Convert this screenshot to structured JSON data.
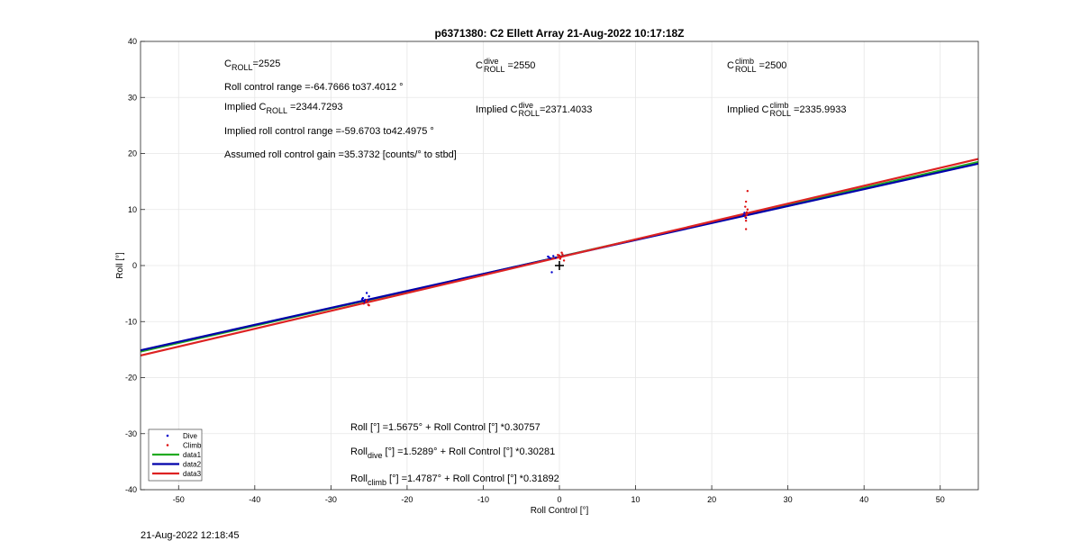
{
  "chart_data": {
    "type": "scatter",
    "title": "p6371380: C2 Ellett Array 21-Aug-2022 10:17:18Z",
    "xlabel": "Roll Control [°]",
    "ylabel": "Roll [°]",
    "xlim": [
      -55,
      55
    ],
    "ylim": [
      -40,
      40
    ],
    "xticks": [
      -50,
      -40,
      -30,
      -20,
      -10,
      0,
      10,
      20,
      30,
      40,
      50
    ],
    "yticks": [
      -40,
      -30,
      -20,
      -10,
      0,
      10,
      20,
      30,
      40
    ],
    "xtick_labels": [
      "-50",
      "-40",
      "-30",
      "-20",
      "-10",
      "0",
      "10",
      "20",
      "30",
      "40",
      "50"
    ],
    "ytick_labels": [
      "-40",
      "-30",
      "-20",
      "-10",
      "0",
      "10",
      "20",
      "30",
      "40"
    ],
    "grid": true,
    "legend_position": "bottom-left",
    "series": [
      {
        "name": "Dive",
        "kind": "points",
        "color": "#0000cc",
        "points": [
          [
            -25.5,
            -6.1
          ],
          [
            -25.8,
            -5.8
          ],
          [
            -25.2,
            -6.3
          ],
          [
            -25.0,
            -5.5
          ],
          [
            -25.6,
            -6.6
          ],
          [
            -25.3,
            -4.9
          ],
          [
            -25.9,
            -6.0
          ],
          [
            -1.5,
            1.6
          ],
          [
            -1.2,
            1.3
          ],
          [
            -0.8,
            1.7
          ],
          [
            -1.0,
            -1.2
          ],
          [
            -1.4,
            1.5
          ],
          [
            -0.5,
            1.4
          ],
          [
            24.2,
            9.0
          ],
          [
            24.5,
            8.5
          ],
          [
            24.3,
            9.4
          ]
        ]
      },
      {
        "name": "Climb",
        "kind": "points",
        "color": "#dd1111",
        "points": [
          [
            -25.4,
            -6.5
          ],
          [
            -25.1,
            -7.0
          ],
          [
            -25.7,
            -6.8
          ],
          [
            -25.3,
            -6.2
          ],
          [
            -25.0,
            -7.1
          ],
          [
            0.0,
            1.8
          ],
          [
            0.2,
            1.5
          ],
          [
            0.3,
            2.3
          ],
          [
            0.6,
            0.9
          ],
          [
            0.4,
            2.0
          ],
          [
            0.1,
            1.2
          ],
          [
            -0.2,
            1.9
          ],
          [
            24.5,
            8.0
          ],
          [
            24.6,
            9.5
          ],
          [
            24.4,
            10.5
          ],
          [
            24.5,
            11.4
          ],
          [
            24.7,
            13.3
          ],
          [
            24.5,
            6.5
          ],
          [
            24.6,
            9.0
          ],
          [
            24.4,
            8.7
          ],
          [
            24.7,
            10.0
          ]
        ]
      },
      {
        "name": "data1",
        "kind": "line",
        "color": "#22aa22",
        "intercept": 1.5675,
        "slope": 0.30757
      },
      {
        "name": "data2",
        "kind": "line",
        "color": "#0000aa",
        "intercept": 1.5289,
        "slope": 0.30281
      },
      {
        "name": "data3",
        "kind": "line",
        "color": "#dd2222",
        "intercept": 1.4787,
        "slope": 0.31892
      }
    ],
    "marker": {
      "symbol": "+",
      "x": 0,
      "y": 0
    }
  },
  "annotations": {
    "c_roll_base": "C",
    "c_roll_sub": "ROLL",
    "c_roll_value": "=2525",
    "range_text": "Roll control range =-64.7666 to37.4012 °",
    "implied_prefix": "Implied C",
    "implied_sub": "ROLL",
    "implied_value": "=2344.7293",
    "implied_range_text": "Implied roll control range =-59.6703 to42.4975 °",
    "gain_text": "Assumed roll control gain =35.3732 [counts/° to stbd]",
    "dive_base": "C",
    "dive_sup": "dive",
    "dive_sub": "ROLL",
    "dive_value": "=2550",
    "implied_dive_prefix": "Implied C",
    "implied_dive_value": "=2371.4033",
    "climb_base": "C",
    "climb_sup": "climb",
    "climb_sub": "ROLL",
    "climb_value": "=2500",
    "implied_climb_prefix": "Implied C",
    "implied_climb_value": "=2335.9933",
    "eq_all": "Roll [°] =1.5675° + Roll Control [°] *0.30757",
    "eq_dive_base": "Roll",
    "eq_dive_sub": "dive",
    "eq_dive_rest": " [°] =1.5289° + Roll Control [°] *0.30281",
    "eq_climb_base": "Roll",
    "eq_climb_sub": "climb",
    "eq_climb_rest": " [°] =1.4787° + Roll Control [°] *0.31892"
  },
  "timestamp": "21-Aug-2022 12:18:45"
}
